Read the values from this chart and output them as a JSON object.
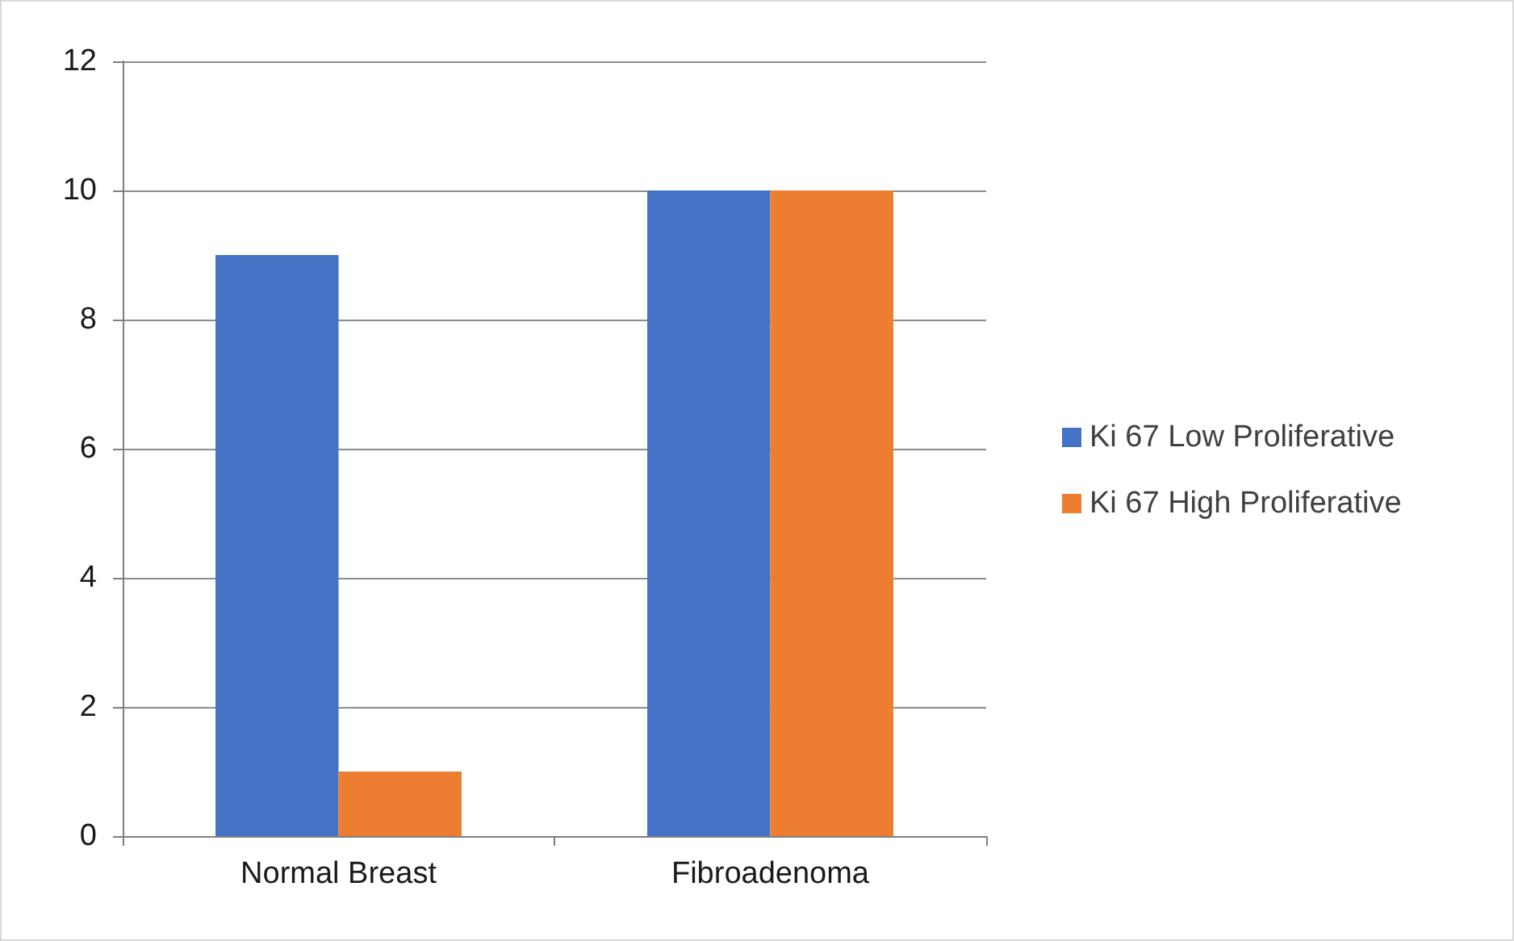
{
  "chart_data": {
    "type": "bar",
    "categories": [
      "Normal Breast",
      "Fibroadenoma"
    ],
    "series": [
      {
        "name": "Ki 67 Low Proliferative",
        "color": "#4472c4",
        "values": [
          9,
          10
        ]
      },
      {
        "name": "Ki 67 High Proliferative",
        "color": "#ed7d31",
        "values": [
          1,
          10
        ]
      }
    ],
    "ylim": [
      0,
      12
    ],
    "yticks": [
      0,
      2,
      4,
      6,
      8,
      10,
      12
    ],
    "grid": "y",
    "legend": "right"
  }
}
